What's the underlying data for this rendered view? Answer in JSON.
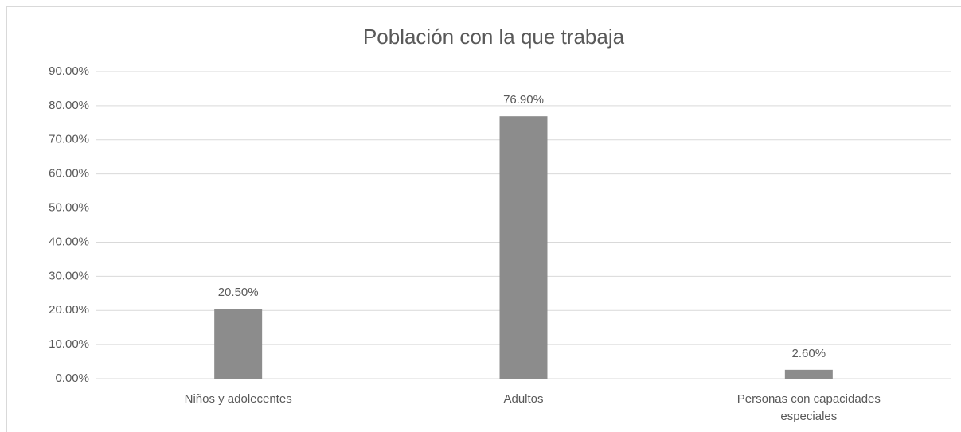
{
  "chart_data": {
    "type": "bar",
    "title": "Población con la que trabaja",
    "categories": [
      "Niños y adolecentes",
      "Adultos",
      "Personas con capacidades especiales"
    ],
    "values": [
      20.5,
      76.9,
      2.6
    ],
    "value_labels": [
      "20.50%",
      "76.90%",
      "2.60%"
    ],
    "color": "#8c8c8c",
    "ylim": [
      0,
      90
    ],
    "yticks": [
      {
        "value": 0,
        "label": "0.00%"
      },
      {
        "value": 10,
        "label": "10.00%"
      },
      {
        "value": 20,
        "label": "20.00%"
      },
      {
        "value": 30,
        "label": "30.00%"
      },
      {
        "value": 40,
        "label": "40.00%"
      },
      {
        "value": 50,
        "label": "50.00%"
      },
      {
        "value": 60,
        "label": "60.00%"
      },
      {
        "value": 70,
        "label": "70.00%"
      },
      {
        "value": 80,
        "label": "80.00%"
      },
      {
        "value": 90,
        "label": "90.00%"
      }
    ],
    "grid": true
  }
}
